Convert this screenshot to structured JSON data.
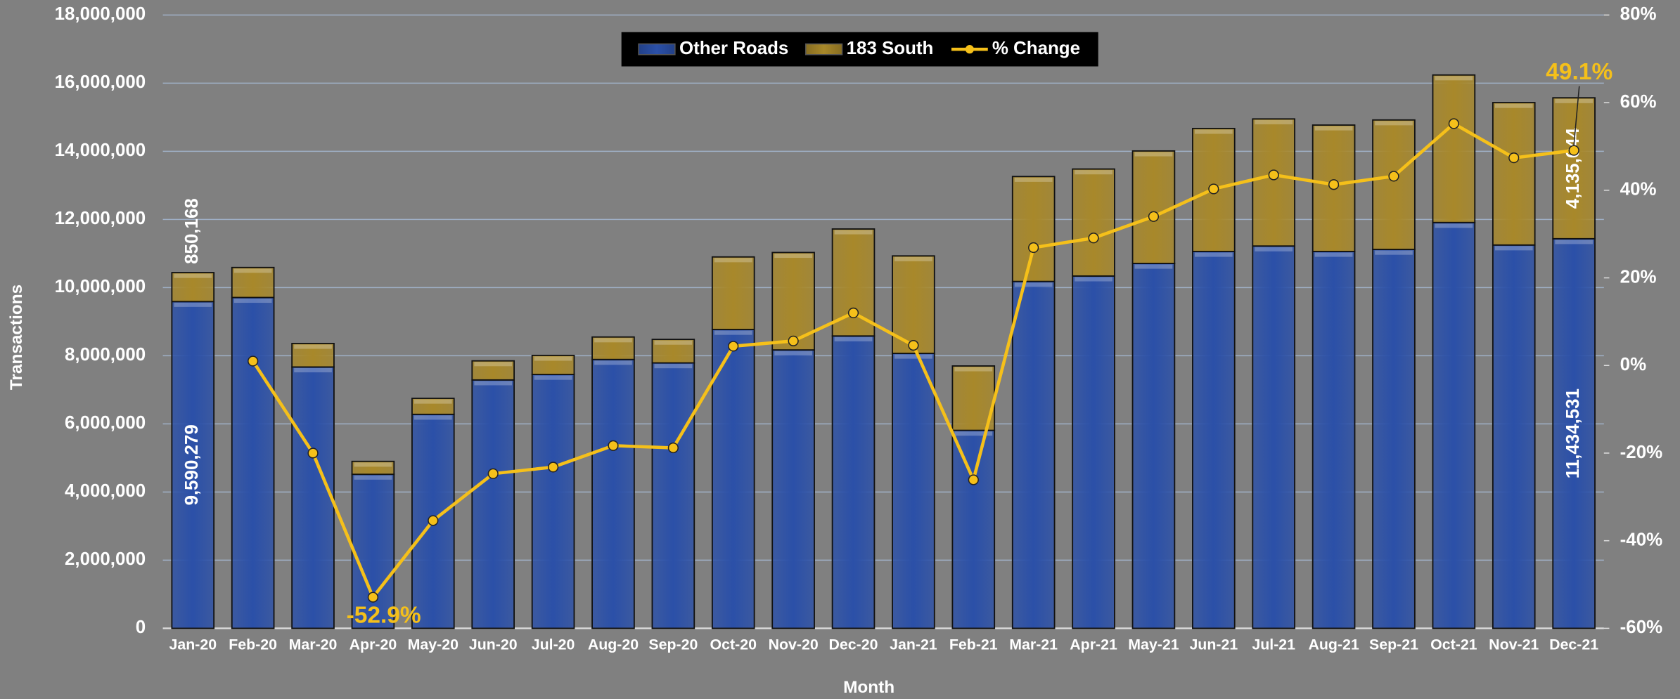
{
  "chart_data": {
    "type": "bar",
    "stacked": true,
    "xlabel": "Month",
    "ylabel": "Transactions",
    "categories": [
      "Jan-20",
      "Feb-20",
      "Mar-20",
      "Apr-20",
      "May-20",
      "Jun-20",
      "Jul-20",
      "Aug-20",
      "Sep-20",
      "Oct-20",
      "Nov-20",
      "Dec-20",
      "Jan-21",
      "Feb-21",
      "Mar-21",
      "Apr-21",
      "May-21",
      "Jun-21",
      "Jul-21",
      "Aug-21",
      "Sep-21",
      "Oct-21",
      "Nov-21",
      "Dec-21"
    ],
    "series": [
      {
        "name": "Other Roads",
        "color": "#2b50a8",
        "values": [
          9590279,
          9710000,
          7670000,
          4520000,
          6280000,
          7290000,
          7450000,
          7890000,
          7790000,
          8770000,
          8170000,
          8580000,
          8070000,
          5810000,
          10180000,
          10340000,
          10710000,
          11060000,
          11220000,
          11060000,
          11120000,
          11910000,
          11250000,
          11434531
        ],
        "value_labels": [
          "9,590,279",
          null,
          null,
          null,
          null,
          null,
          null,
          null,
          null,
          null,
          null,
          null,
          null,
          null,
          null,
          null,
          null,
          null,
          null,
          null,
          null,
          null,
          null,
          "11,434,531"
        ]
      },
      {
        "name": "183 South",
        "color": "#a8882a",
        "values": [
          850168,
          880000,
          690000,
          380000,
          470000,
          560000,
          560000,
          660000,
          690000,
          2130000,
          2860000,
          3140000,
          2860000,
          1890000,
          3080000,
          3140000,
          3300000,
          3610000,
          3730000,
          3710000,
          3800000,
          4330000,
          4180000,
          4135644
        ],
        "value_labels": [
          "850,168",
          null,
          null,
          null,
          null,
          null,
          null,
          null,
          null,
          null,
          null,
          null,
          null,
          null,
          null,
          null,
          null,
          null,
          null,
          null,
          null,
          null,
          null,
          "4,135,644"
        ]
      },
      {
        "name": "% Change",
        "color": "#f5c01a",
        "type": "line",
        "axis": "y2",
        "values": [
          null,
          1,
          -20,
          -52.9,
          -35.4,
          -24.7,
          -23.2,
          -18.3,
          -18.8,
          4.4,
          5.6,
          12,
          4.6,
          -26.1,
          26.9,
          29.1,
          34,
          40.3,
          43.5,
          41.3,
          43.2,
          55.2,
          47.4,
          49.1
        ],
        "value_labels": [
          null,
          null,
          null,
          "-52.9%",
          null,
          null,
          null,
          null,
          null,
          null,
          null,
          null,
          null,
          null,
          null,
          null,
          null,
          null,
          null,
          null,
          null,
          null,
          null,
          "49.1%"
        ]
      }
    ],
    "ylim": [
      0,
      18000000
    ],
    "yticks": [
      {
        "value": 0,
        "label": "0"
      },
      {
        "value": 2000000,
        "label": "2,000,000"
      },
      {
        "value": 4000000,
        "label": "4,000,000"
      },
      {
        "value": 6000000,
        "label": "6,000,000"
      },
      {
        "value": 8000000,
        "label": "8,000,000"
      },
      {
        "value": 10000000,
        "label": "10,000,000"
      },
      {
        "value": 12000000,
        "label": "12,000,000"
      },
      {
        "value": 14000000,
        "label": "14,000,000"
      },
      {
        "value": 16000000,
        "label": "16,000,000"
      },
      {
        "value": 18000000,
        "label": "18,000,000"
      }
    ],
    "y2lim": [
      -60,
      80
    ],
    "y2ticks": [
      {
        "value": -60,
        "label": "-60%"
      },
      {
        "value": -40,
        "label": "-40%"
      },
      {
        "value": -20,
        "label": "-20%"
      },
      {
        "value": 0,
        "label": "0%"
      },
      {
        "value": 20,
        "label": "20%"
      },
      {
        "value": 40,
        "label": "40%"
      },
      {
        "value": 60,
        "label": "60%"
      },
      {
        "value": 80,
        "label": "80%"
      }
    ],
    "grid": true,
    "legend": "top"
  }
}
